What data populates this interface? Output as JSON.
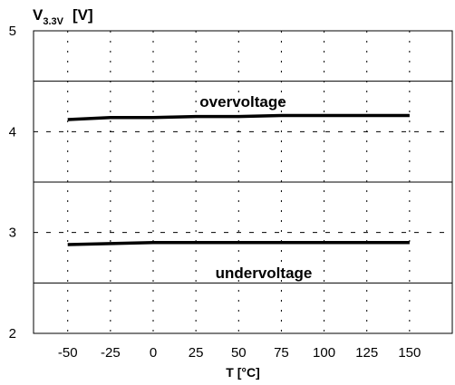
{
  "chart_data": {
    "type": "line",
    "x": [
      -50,
      -25,
      0,
      25,
      50,
      75,
      100,
      125,
      150
    ],
    "xlabel": "T [°C]",
    "ylabel_main": "V",
    "ylabel_sub": "3.3V",
    "ylabel_unit": "[V]",
    "xlim": [
      -70,
      175
    ],
    "ylim": [
      2,
      5
    ],
    "y_ticks": [
      2,
      3,
      4,
      5
    ],
    "x_ticks": [
      -50,
      -25,
      0,
      25,
      50,
      75,
      100,
      125,
      150
    ],
    "grid": true,
    "series": [
      {
        "name": "",
        "label": "overvoltage",
        "values": [
          4.12,
          4.14,
          4.14,
          4.15,
          4.15,
          4.16,
          4.16,
          4.16,
          4.16
        ],
        "color": "#000000"
      },
      {
        "name": "",
        "label": "undervoltage",
        "values": [
          2.88,
          2.89,
          2.9,
          2.9,
          2.9,
          2.9,
          2.9,
          2.9,
          2.9
        ],
        "color": "#000000"
      }
    ]
  }
}
